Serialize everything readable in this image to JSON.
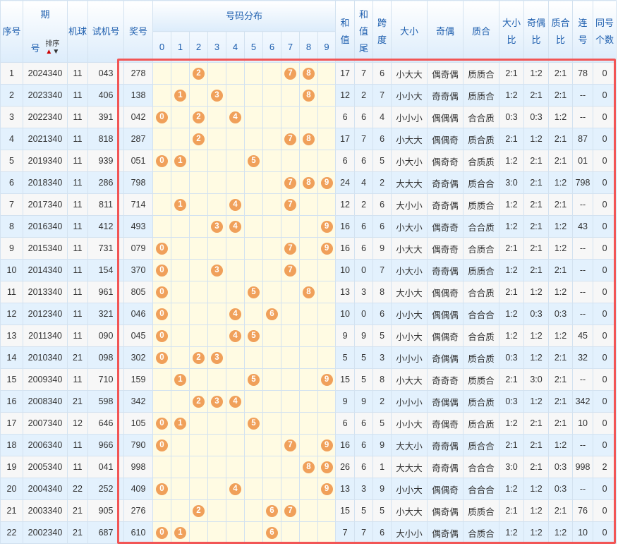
{
  "headers": {
    "seq": "序号",
    "period_1": "期",
    "period_2": "号",
    "sort": "排序",
    "sort_up": "▲",
    "sort_down": "▼",
    "machine": "机球",
    "test": "试机号",
    "prize": "奖号",
    "dist": "号码分布",
    "digits": [
      "0",
      "1",
      "2",
      "3",
      "4",
      "5",
      "6",
      "7",
      "8",
      "9"
    ],
    "sum_1": "和",
    "sum_2": "值",
    "tail_1": "和",
    "tail_2": "值",
    "tail_3": "尾",
    "span_1": "跨",
    "span_2": "度",
    "bigsmall": "大小",
    "oddeven": "奇偶",
    "primecomp": "质合",
    "bs_ratio_1": "大小",
    "bs_ratio_2": "比",
    "oe_ratio_1": "奇偶",
    "oe_ratio_2": "比",
    "pc_ratio_1": "质合",
    "pc_ratio_2": "比",
    "consec_1": "连",
    "consec_2": "号",
    "same_1": "同号",
    "same_2": "个数"
  },
  "accent": {
    "ball": "#f0a05a",
    "highlight_border": "#f25555"
  },
  "rows": [
    {
      "seq": "1",
      "period": "2024340",
      "machine": "11",
      "test": "043",
      "prize": "278",
      "sum": "17",
      "tail": "7",
      "span": "6",
      "bs": "小大大",
      "oe": "偶奇偶",
      "pc": "质质合",
      "bsr": "2:1",
      "oer": "1:2",
      "pcr": "2:1",
      "consec": "78",
      "same": "0"
    },
    {
      "seq": "2",
      "period": "2023340",
      "machine": "11",
      "test": "406",
      "prize": "138",
      "sum": "12",
      "tail": "2",
      "span": "7",
      "bs": "小小大",
      "oe": "奇奇偶",
      "pc": "质质合",
      "bsr": "1:2",
      "oer": "2:1",
      "pcr": "2:1",
      "consec": "--",
      "same": "0"
    },
    {
      "seq": "3",
      "period": "2022340",
      "machine": "11",
      "test": "391",
      "prize": "042",
      "sum": "6",
      "tail": "6",
      "span": "4",
      "bs": "小小小",
      "oe": "偶偶偶",
      "pc": "合合质",
      "bsr": "0:3",
      "oer": "0:3",
      "pcr": "1:2",
      "consec": "--",
      "same": "0"
    },
    {
      "seq": "4",
      "period": "2021340",
      "machine": "11",
      "test": "818",
      "prize": "287",
      "sum": "17",
      "tail": "7",
      "span": "6",
      "bs": "小大大",
      "oe": "偶偶奇",
      "pc": "质合质",
      "bsr": "2:1",
      "oer": "1:2",
      "pcr": "2:1",
      "consec": "87",
      "same": "0"
    },
    {
      "seq": "5",
      "period": "2019340",
      "machine": "11",
      "test": "939",
      "prize": "051",
      "sum": "6",
      "tail": "6",
      "span": "5",
      "bs": "小大小",
      "oe": "偶奇奇",
      "pc": "合质质",
      "bsr": "1:2",
      "oer": "2:1",
      "pcr": "2:1",
      "consec": "01",
      "same": "0"
    },
    {
      "seq": "6",
      "period": "2018340",
      "machine": "11",
      "test": "286",
      "prize": "798",
      "sum": "24",
      "tail": "4",
      "span": "2",
      "bs": "大大大",
      "oe": "奇奇偶",
      "pc": "质合合",
      "bsr": "3:0",
      "oer": "2:1",
      "pcr": "1:2",
      "consec": "798",
      "same": "0"
    },
    {
      "seq": "7",
      "period": "2017340",
      "machine": "11",
      "test": "811",
      "prize": "714",
      "sum": "12",
      "tail": "2",
      "span": "6",
      "bs": "大小小",
      "oe": "奇奇偶",
      "pc": "质质合",
      "bsr": "1:2",
      "oer": "2:1",
      "pcr": "2:1",
      "consec": "--",
      "same": "0"
    },
    {
      "seq": "8",
      "period": "2016340",
      "machine": "11",
      "test": "412",
      "prize": "493",
      "sum": "16",
      "tail": "6",
      "span": "6",
      "bs": "小大小",
      "oe": "偶奇奇",
      "pc": "合合质",
      "bsr": "1:2",
      "oer": "2:1",
      "pcr": "1:2",
      "consec": "43",
      "same": "0"
    },
    {
      "seq": "9",
      "period": "2015340",
      "machine": "11",
      "test": "731",
      "prize": "079",
      "sum": "16",
      "tail": "6",
      "span": "9",
      "bs": "小大大",
      "oe": "偶奇奇",
      "pc": "合质合",
      "bsr": "2:1",
      "oer": "2:1",
      "pcr": "1:2",
      "consec": "--",
      "same": "0"
    },
    {
      "seq": "10",
      "period": "2014340",
      "machine": "11",
      "test": "154",
      "prize": "370",
      "sum": "10",
      "tail": "0",
      "span": "7",
      "bs": "小大小",
      "oe": "奇奇偶",
      "pc": "质质合",
      "bsr": "1:2",
      "oer": "2:1",
      "pcr": "2:1",
      "consec": "--",
      "same": "0"
    },
    {
      "seq": "11",
      "period": "2013340",
      "machine": "11",
      "test": "961",
      "prize": "805",
      "sum": "13",
      "tail": "3",
      "span": "8",
      "bs": "大小大",
      "oe": "偶偶奇",
      "pc": "合合质",
      "bsr": "2:1",
      "oer": "1:2",
      "pcr": "1:2",
      "consec": "--",
      "same": "0"
    },
    {
      "seq": "12",
      "period": "2012340",
      "machine": "11",
      "test": "321",
      "prize": "046",
      "sum": "10",
      "tail": "0",
      "span": "6",
      "bs": "小小大",
      "oe": "偶偶偶",
      "pc": "合合合",
      "bsr": "1:2",
      "oer": "0:3",
      "pcr": "0:3",
      "consec": "--",
      "same": "0"
    },
    {
      "seq": "13",
      "period": "2011340",
      "machine": "11",
      "test": "090",
      "prize": "045",
      "sum": "9",
      "tail": "9",
      "span": "5",
      "bs": "小小大",
      "oe": "偶偶奇",
      "pc": "合合质",
      "bsr": "1:2",
      "oer": "1:2",
      "pcr": "1:2",
      "consec": "45",
      "same": "0"
    },
    {
      "seq": "14",
      "period": "2010340",
      "machine": "21",
      "test": "098",
      "prize": "302",
      "sum": "5",
      "tail": "5",
      "span": "3",
      "bs": "小小小",
      "oe": "奇偶偶",
      "pc": "质合质",
      "bsr": "0:3",
      "oer": "1:2",
      "pcr": "2:1",
      "consec": "32",
      "same": "0"
    },
    {
      "seq": "15",
      "period": "2009340",
      "machine": "11",
      "test": "710",
      "prize": "159",
      "sum": "15",
      "tail": "5",
      "span": "8",
      "bs": "小大大",
      "oe": "奇奇奇",
      "pc": "质质合",
      "bsr": "2:1",
      "oer": "3:0",
      "pcr": "2:1",
      "consec": "--",
      "same": "0"
    },
    {
      "seq": "16",
      "period": "2008340",
      "machine": "21",
      "test": "598",
      "prize": "342",
      "sum": "9",
      "tail": "9",
      "span": "2",
      "bs": "小小小",
      "oe": "奇偶偶",
      "pc": "质合质",
      "bsr": "0:3",
      "oer": "1:2",
      "pcr": "2:1",
      "consec": "342",
      "same": "0"
    },
    {
      "seq": "17",
      "period": "2007340",
      "machine": "12",
      "test": "646",
      "prize": "105",
      "sum": "6",
      "tail": "6",
      "span": "5",
      "bs": "小小大",
      "oe": "奇偶奇",
      "pc": "质合质",
      "bsr": "1:2",
      "oer": "2:1",
      "pcr": "2:1",
      "consec": "10",
      "same": "0"
    },
    {
      "seq": "18",
      "period": "2006340",
      "machine": "11",
      "test": "966",
      "prize": "790",
      "sum": "16",
      "tail": "6",
      "span": "9",
      "bs": "大大小",
      "oe": "奇奇偶",
      "pc": "质合合",
      "bsr": "2:1",
      "oer": "2:1",
      "pcr": "1:2",
      "consec": "--",
      "same": "0"
    },
    {
      "seq": "19",
      "period": "2005340",
      "machine": "11",
      "test": "041",
      "prize": "998",
      "sum": "26",
      "tail": "6",
      "span": "1",
      "bs": "大大大",
      "oe": "奇奇偶",
      "pc": "合合合",
      "bsr": "3:0",
      "oer": "2:1",
      "pcr": "0:3",
      "consec": "998",
      "same": "2"
    },
    {
      "seq": "20",
      "period": "2004340",
      "machine": "22",
      "test": "252",
      "prize": "409",
      "sum": "13",
      "tail": "3",
      "span": "9",
      "bs": "小小大",
      "oe": "偶偶奇",
      "pc": "合合合",
      "bsr": "1:2",
      "oer": "1:2",
      "pcr": "0:3",
      "consec": "--",
      "same": "0"
    },
    {
      "seq": "21",
      "period": "2003340",
      "machine": "21",
      "test": "905",
      "prize": "276",
      "sum": "15",
      "tail": "5",
      "span": "5",
      "bs": "小大大",
      "oe": "偶奇偶",
      "pc": "质质合",
      "bsr": "2:1",
      "oer": "1:2",
      "pcr": "2:1",
      "consec": "76",
      "same": "0"
    },
    {
      "seq": "22",
      "period": "2002340",
      "machine": "21",
      "test": "687",
      "prize": "610",
      "sum": "7",
      "tail": "7",
      "span": "6",
      "bs": "大小小",
      "oe": "偶奇偶",
      "pc": "合质合",
      "bsr": "1:2",
      "oer": "1:2",
      "pcr": "1:2",
      "consec": "10",
      "same": "0"
    }
  ]
}
